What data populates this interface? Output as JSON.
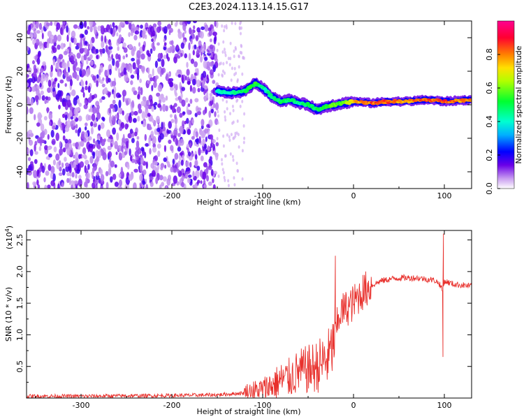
{
  "chart_data": [
    {
      "type": "heatmap",
      "title": "C2E3.2024.113.14.15.G17",
      "xlabel": "Height of straight line (km)",
      "ylabel": "Frequency (Hz)",
      "xlim": [
        -360,
        130
      ],
      "ylim": [
        -50,
        50
      ],
      "x_ticks": [
        "-300",
        "-200",
        "-100",
        "0",
        "100"
      ],
      "y_ticks": [
        "-40",
        "-20",
        "0",
        "20",
        "40"
      ],
      "colorbar": {
        "label": "Normalized spectral amplitude",
        "range": [
          0.0,
          1.0
        ],
        "ticks": [
          "0.0",
          "0.2",
          "0.4",
          "0.6",
          "0.8"
        ]
      },
      "ridge": {
        "x": [
          -150,
          -135,
          -120,
          -108,
          -100,
          -90,
          -80,
          -70,
          -60,
          -50,
          -40,
          -30,
          -20,
          -10,
          0,
          20,
          40,
          60,
          80,
          100,
          130
        ],
        "frequency": [
          8,
          7,
          8,
          13,
          10,
          5,
          2,
          3,
          1,
          0,
          -3,
          -1,
          0,
          1,
          2,
          1,
          2,
          2,
          3,
          2,
          3
        ],
        "amplitude": [
          0.4,
          0.45,
          0.5,
          0.55,
          0.45,
          0.45,
          0.5,
          0.5,
          0.45,
          0.5,
          0.5,
          0.55,
          0.6,
          0.6,
          0.75,
          0.85,
          0.85,
          0.8,
          0.85,
          0.85,
          0.8
        ]
      },
      "noise_region_x": [
        -360,
        -150
      ]
    },
    {
      "type": "line",
      "xlabel": "Height of straight line (km)",
      "ylabel": "SNR (10 * v/v)",
      "y_multiplier": "(x10",
      "y_multiplier_exp": "4",
      "y_multiplier_close": ")",
      "xlim": [
        -360,
        130
      ],
      "ylim": [
        0,
        2.65
      ],
      "x_ticks": [
        "-300",
        "-200",
        "-100",
        "0",
        "100"
      ],
      "y_ticks": [
        "0.5",
        "1.0",
        "1.5",
        "2.0",
        "2.5"
      ],
      "series": [
        {
          "color": "#e8302c",
          "x": [
            -360,
            -300,
            -200,
            -150,
            -120,
            -100,
            -90,
            -80,
            -70,
            -60,
            -50,
            -40,
            -30,
            -25,
            -20,
            -15,
            -10,
            0,
            5,
            10,
            20,
            30,
            40,
            50,
            60,
            70,
            80,
            90,
            95,
            98,
            100,
            110,
            130
          ],
          "y": [
            0.03,
            0.03,
            0.04,
            0.05,
            0.08,
            0.12,
            0.2,
            0.28,
            0.32,
            0.42,
            0.45,
            0.5,
            0.6,
            0.7,
            1.0,
            1.35,
            1.4,
            1.5,
            1.6,
            1.68,
            1.78,
            1.85,
            1.88,
            1.9,
            1.9,
            1.9,
            1.88,
            1.86,
            1.8,
            1.7,
            1.85,
            1.8,
            1.77
          ]
        }
      ],
      "spikes": [
        {
          "x": -20,
          "y": 2.25
        },
        {
          "x": 99,
          "y": 2.6
        },
        {
          "x": 98.5,
          "y": 0.65
        }
      ]
    }
  ]
}
